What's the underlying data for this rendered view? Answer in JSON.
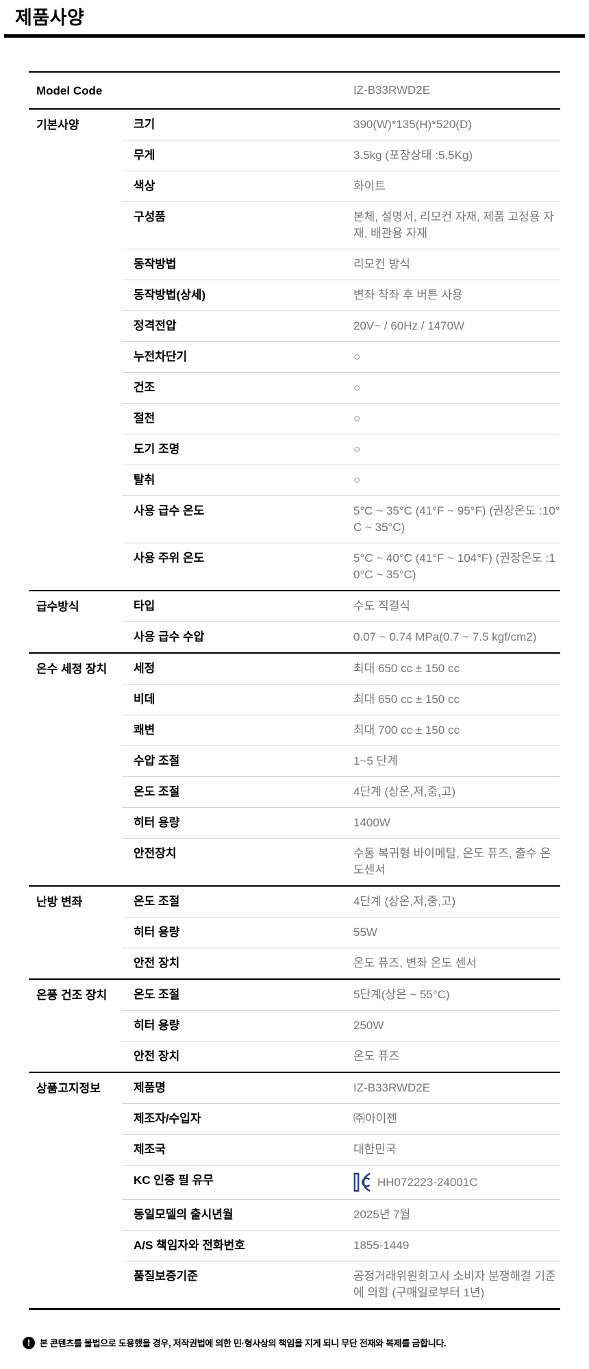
{
  "page": {
    "title": "제품사양"
  },
  "colors": {
    "heavy_rule": "#000000",
    "light_rule": "#d4d4d4",
    "value_text": "#767676",
    "kc_navy": "#1e3f80"
  },
  "table": {
    "model_code": {
      "label": "Model Code",
      "value": "IZ-B33RWD2E"
    },
    "circle_symbol": "○",
    "groups": [
      {
        "name": "기본사양",
        "rows": [
          {
            "label": "크기",
            "value": "390(W)*135(H)*520(D)"
          },
          {
            "label": "무게",
            "value": "3.5kg (포장상태 :5.5Kg)"
          },
          {
            "label": "색상",
            "value": "화이트"
          },
          {
            "label": "구성품",
            "value": "본체, 설명서, 리모컨 자재, 제품 고정용 자재, 배관용 자재"
          },
          {
            "label": "동작방법",
            "value": "리모컨 방식"
          },
          {
            "label": "동작방법(상세)",
            "value": "변좌 착좌 후 버튼 사용"
          },
          {
            "label": "정격전압",
            "value": "20V~ / 60Hz / 1470W"
          },
          {
            "label": "누전차단기",
            "value": "○"
          },
          {
            "label": "건조",
            "value": "○"
          },
          {
            "label": "절전",
            "value": "○"
          },
          {
            "label": "도기 조명",
            "value": "○"
          },
          {
            "label": "탈취",
            "value": "○"
          },
          {
            "label": "사용 급수 온도",
            "value": "5°C ~ 35°C (41°F ~ 95°F) (권장온도 :10°C ~ 35°C)"
          },
          {
            "label": "사용 주위 온도",
            "value": "5°C ~ 40°C (41°F ~ 104°F) (권장온도 :10°C ~ 35°C)"
          }
        ]
      },
      {
        "name": "급수방식",
        "rows": [
          {
            "label": "타입",
            "value": "수도 직결식"
          },
          {
            "label": "사용 급수 수압",
            "value": "0.07 ~ 0.74 MPa(0.7 ~ 7.5 kgf/cm2)"
          }
        ]
      },
      {
        "name": "온수 세정 장치",
        "rows": [
          {
            "label": "세정",
            "value": "최대 650 cc ± 150 cc"
          },
          {
            "label": "비데",
            "value": "최대 650 cc ± 150 cc"
          },
          {
            "label": "쾌변",
            "value": "최대 700 cc ± 150 cc"
          },
          {
            "label": "수압 조절",
            "value": "1~5 단계"
          },
          {
            "label": "온도 조절",
            "value": "4단계 (상온,저,중,고)"
          },
          {
            "label": "히터 용량",
            "value": "1400W"
          },
          {
            "label": "안전장치",
            "value": "수동 복귀형 바이메탈, 온도 퓨즈, 출수 온도센서"
          }
        ]
      },
      {
        "name": "난방 변좌",
        "rows": [
          {
            "label": "온도 조절",
            "value": "4단계 (상온,저,중,고)"
          },
          {
            "label": "히터 용량",
            "value": "55W"
          },
          {
            "label": "안전 장치",
            "value": "온도 퓨즈, 변좌 온도 센서"
          }
        ]
      },
      {
        "name": "온풍 건조 장치",
        "rows": [
          {
            "label": "온도 조절",
            "value": "5단계(상온 ~ 55°C)"
          },
          {
            "label": "히터 용량",
            "value": "250W"
          },
          {
            "label": "안전 장치",
            "value": "온도 퓨즈"
          }
        ]
      },
      {
        "name": "상품고지정보",
        "rows": [
          {
            "label": "제품명",
            "value": "IZ-B33RWD2E"
          },
          {
            "label": "제조자/수입자",
            "value": "㈜아이젠"
          },
          {
            "label": "제조국",
            "value": "대한민국"
          },
          {
            "label": "KC 인증 필 유무",
            "value": "HH072223-24001C",
            "icon": "kc-certification-mark-icon"
          },
          {
            "label": "동일모델의 출시년월",
            "value": "2025년 7월"
          },
          {
            "label": "A/S 책임자와 전화번호",
            "value": "1855-1449"
          },
          {
            "label": "품질보증기준",
            "value": "공정거래위원회고시 소비자 분쟁해결 기준에 의함 (구매일로부터 1년)"
          }
        ]
      }
    ]
  },
  "footer": {
    "icon": "exclamation-circle-icon",
    "icon_glyph": "!",
    "notice": "본 콘텐츠를 불법으로 도용했을 경우, 저작권법에 의한 민·형사상의 책임을 지게 되니 무단 전재와 복제를 금합니다."
  }
}
